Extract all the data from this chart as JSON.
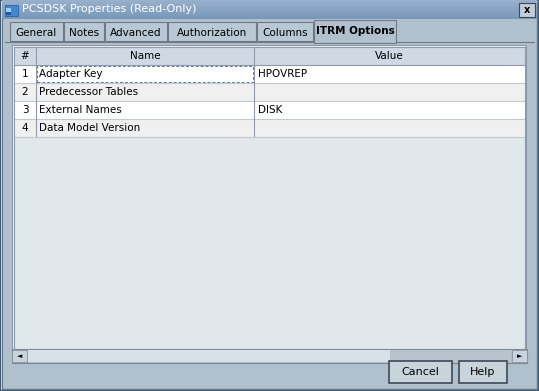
{
  "title": "PCSDSK Properties (Read-Only)",
  "tabs": [
    "General",
    "Notes",
    "Advanced",
    "Authorization",
    "Columns",
    "ITRM Options"
  ],
  "active_tab": "ITRM Options",
  "columns": [
    "#",
    "Name",
    "Value"
  ],
  "rows": [
    [
      "1",
      "Adapter Key",
      "HPOVREP"
    ],
    [
      "2",
      "Predecessor Tables",
      ""
    ],
    [
      "3",
      "External Names",
      "DISK"
    ],
    [
      "4",
      "Data Model Version",
      ""
    ]
  ],
  "buttons": [
    "Cancel",
    "Help"
  ],
  "bg_color": "#b0c0cc",
  "dialog_inner_bg": "#c8d4dc",
  "table_area_bg": "#d0d8e0",
  "title_bar_left": "#8aaac0",
  "title_bar_right": "#6888a0",
  "border_outer_dark": "#5a7a90",
  "border_outer_light": "#ddeeff",
  "tab_inactive_bg": "#c0ccd8",
  "tab_active_bg": "#c8d4dc",
  "tab_border": "#808898",
  "table_white_bg": "#ffffff",
  "table_light_bg": "#f0f0f0",
  "header_bg": "#d8dfe8",
  "grid_color": "#b0b8c0",
  "figsize": [
    5.39,
    3.91
  ],
  "dpi": 100
}
